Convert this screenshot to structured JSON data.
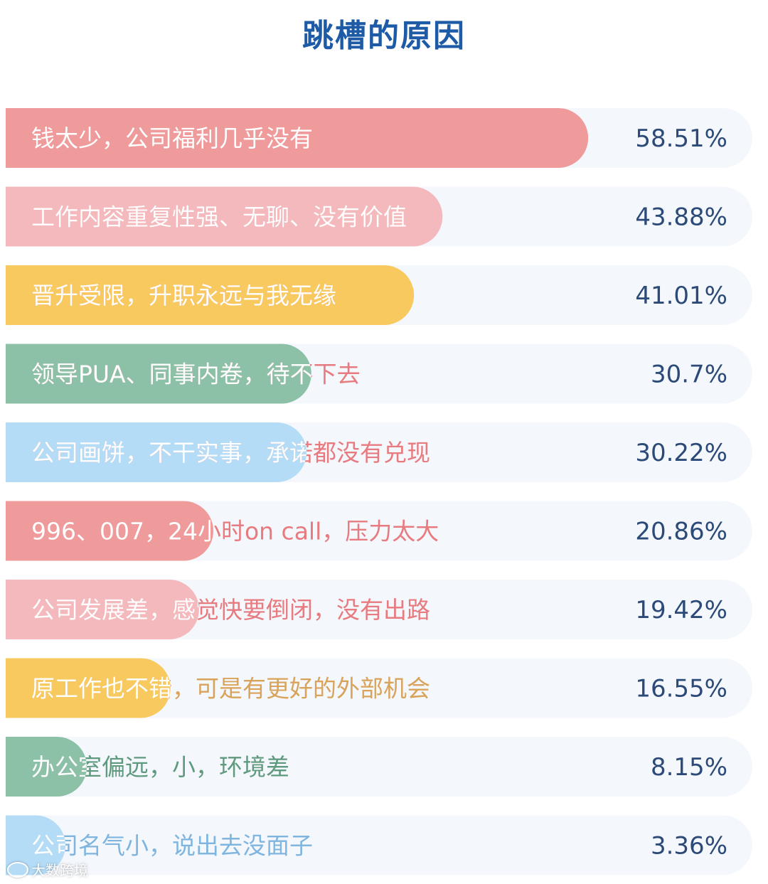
{
  "title": "跳槽的原因",
  "watermark": "大数跨境",
  "colors": {
    "title": "#1d5ba6",
    "track": "#f4f7fc",
    "percent": "#2c4a78"
  },
  "chart_data": {
    "type": "bar",
    "orientation": "horizontal",
    "title": "跳槽的原因",
    "unit": "%",
    "xlim": [
      0,
      75
    ],
    "categories": [
      "钱太少，公司福利几乎没有",
      "工作内容重复性强、无聊、没有价值",
      "晋升受限，升职永远与我无缘",
      "领导PUA、同事内卷，待不下去",
      "公司画饼，不干实事，承诺都没有兑现",
      "996、007，24小时on call，压力太大",
      "公司发展差，感觉快要倒闭，没有出路",
      "原工作也不错，可是有更好的外部机会",
      "办公室偏远，小，环境差",
      "公司名气小，说出去没面子"
    ],
    "values": [
      58.51,
      43.88,
      41.01,
      30.7,
      30.22,
      20.86,
      19.42,
      16.55,
      8.15,
      3.36
    ],
    "value_labels": [
      "58.51%",
      "43.88%",
      "41.01%",
      "30.7%",
      "30.22%",
      "20.86%",
      "19.42%",
      "16.55%",
      "8.15%",
      "3.36%"
    ],
    "bar_colors": [
      "#ef9b9b",
      "#f4b9bd",
      "#f8c95e",
      "#8cc1a8",
      "#b4dcf6",
      "#ef9b9b",
      "#f4b9bd",
      "#f8c95e",
      "#8cc1a8",
      "#b4dcf6"
    ],
    "label_color_inside": "#ffffff",
    "label_colors_outside": [
      "#e77b7f",
      "#e77b7f",
      "#e77b7f",
      "#e77b7f",
      "#e77b7f",
      "#e77b7f",
      "#e77b7f",
      "#d9a35a",
      "#5f9a7e",
      "#7fb5de"
    ]
  }
}
